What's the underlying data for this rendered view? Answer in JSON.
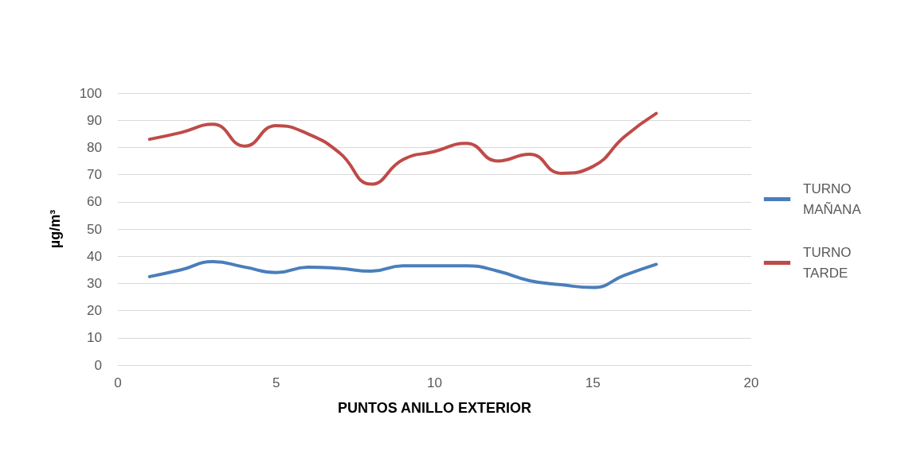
{
  "chart_data": {
    "type": "line",
    "xlabel": "PUNTOS ANILLO EXTERIOR",
    "ylabel": "µg/m³",
    "x": [
      1,
      2,
      3,
      4,
      5,
      6,
      7,
      8,
      9,
      10,
      11,
      12,
      13,
      14,
      15,
      16,
      17
    ],
    "series": [
      {
        "name": "TURNO MAÑANA",
        "color": "#4a7ebb",
        "values": [
          32.5,
          35,
          38,
          36,
          34,
          36,
          35.5,
          34.5,
          36.5,
          36.5,
          36.5,
          34.5,
          31,
          29.5,
          28.5,
          33,
          37
        ]
      },
      {
        "name": "TURNO TARDE",
        "color": "#be4b48",
        "values": [
          83,
          85.5,
          88.5,
          80.5,
          88,
          85,
          78,
          66.5,
          75.5,
          78.5,
          81.5,
          75,
          77.5,
          70.5,
          73,
          84,
          92.5
        ]
      }
    ],
    "xlim": [
      0,
      20
    ],
    "xticks": [
      0,
      5,
      10,
      15,
      20
    ],
    "ylim": [
      0,
      100
    ],
    "yticks": [
      0,
      10,
      20,
      30,
      40,
      50,
      60,
      70,
      80,
      90,
      100
    ],
    "grid": "y",
    "legend": "right",
    "marker": "none",
    "line_style": "solid"
  }
}
